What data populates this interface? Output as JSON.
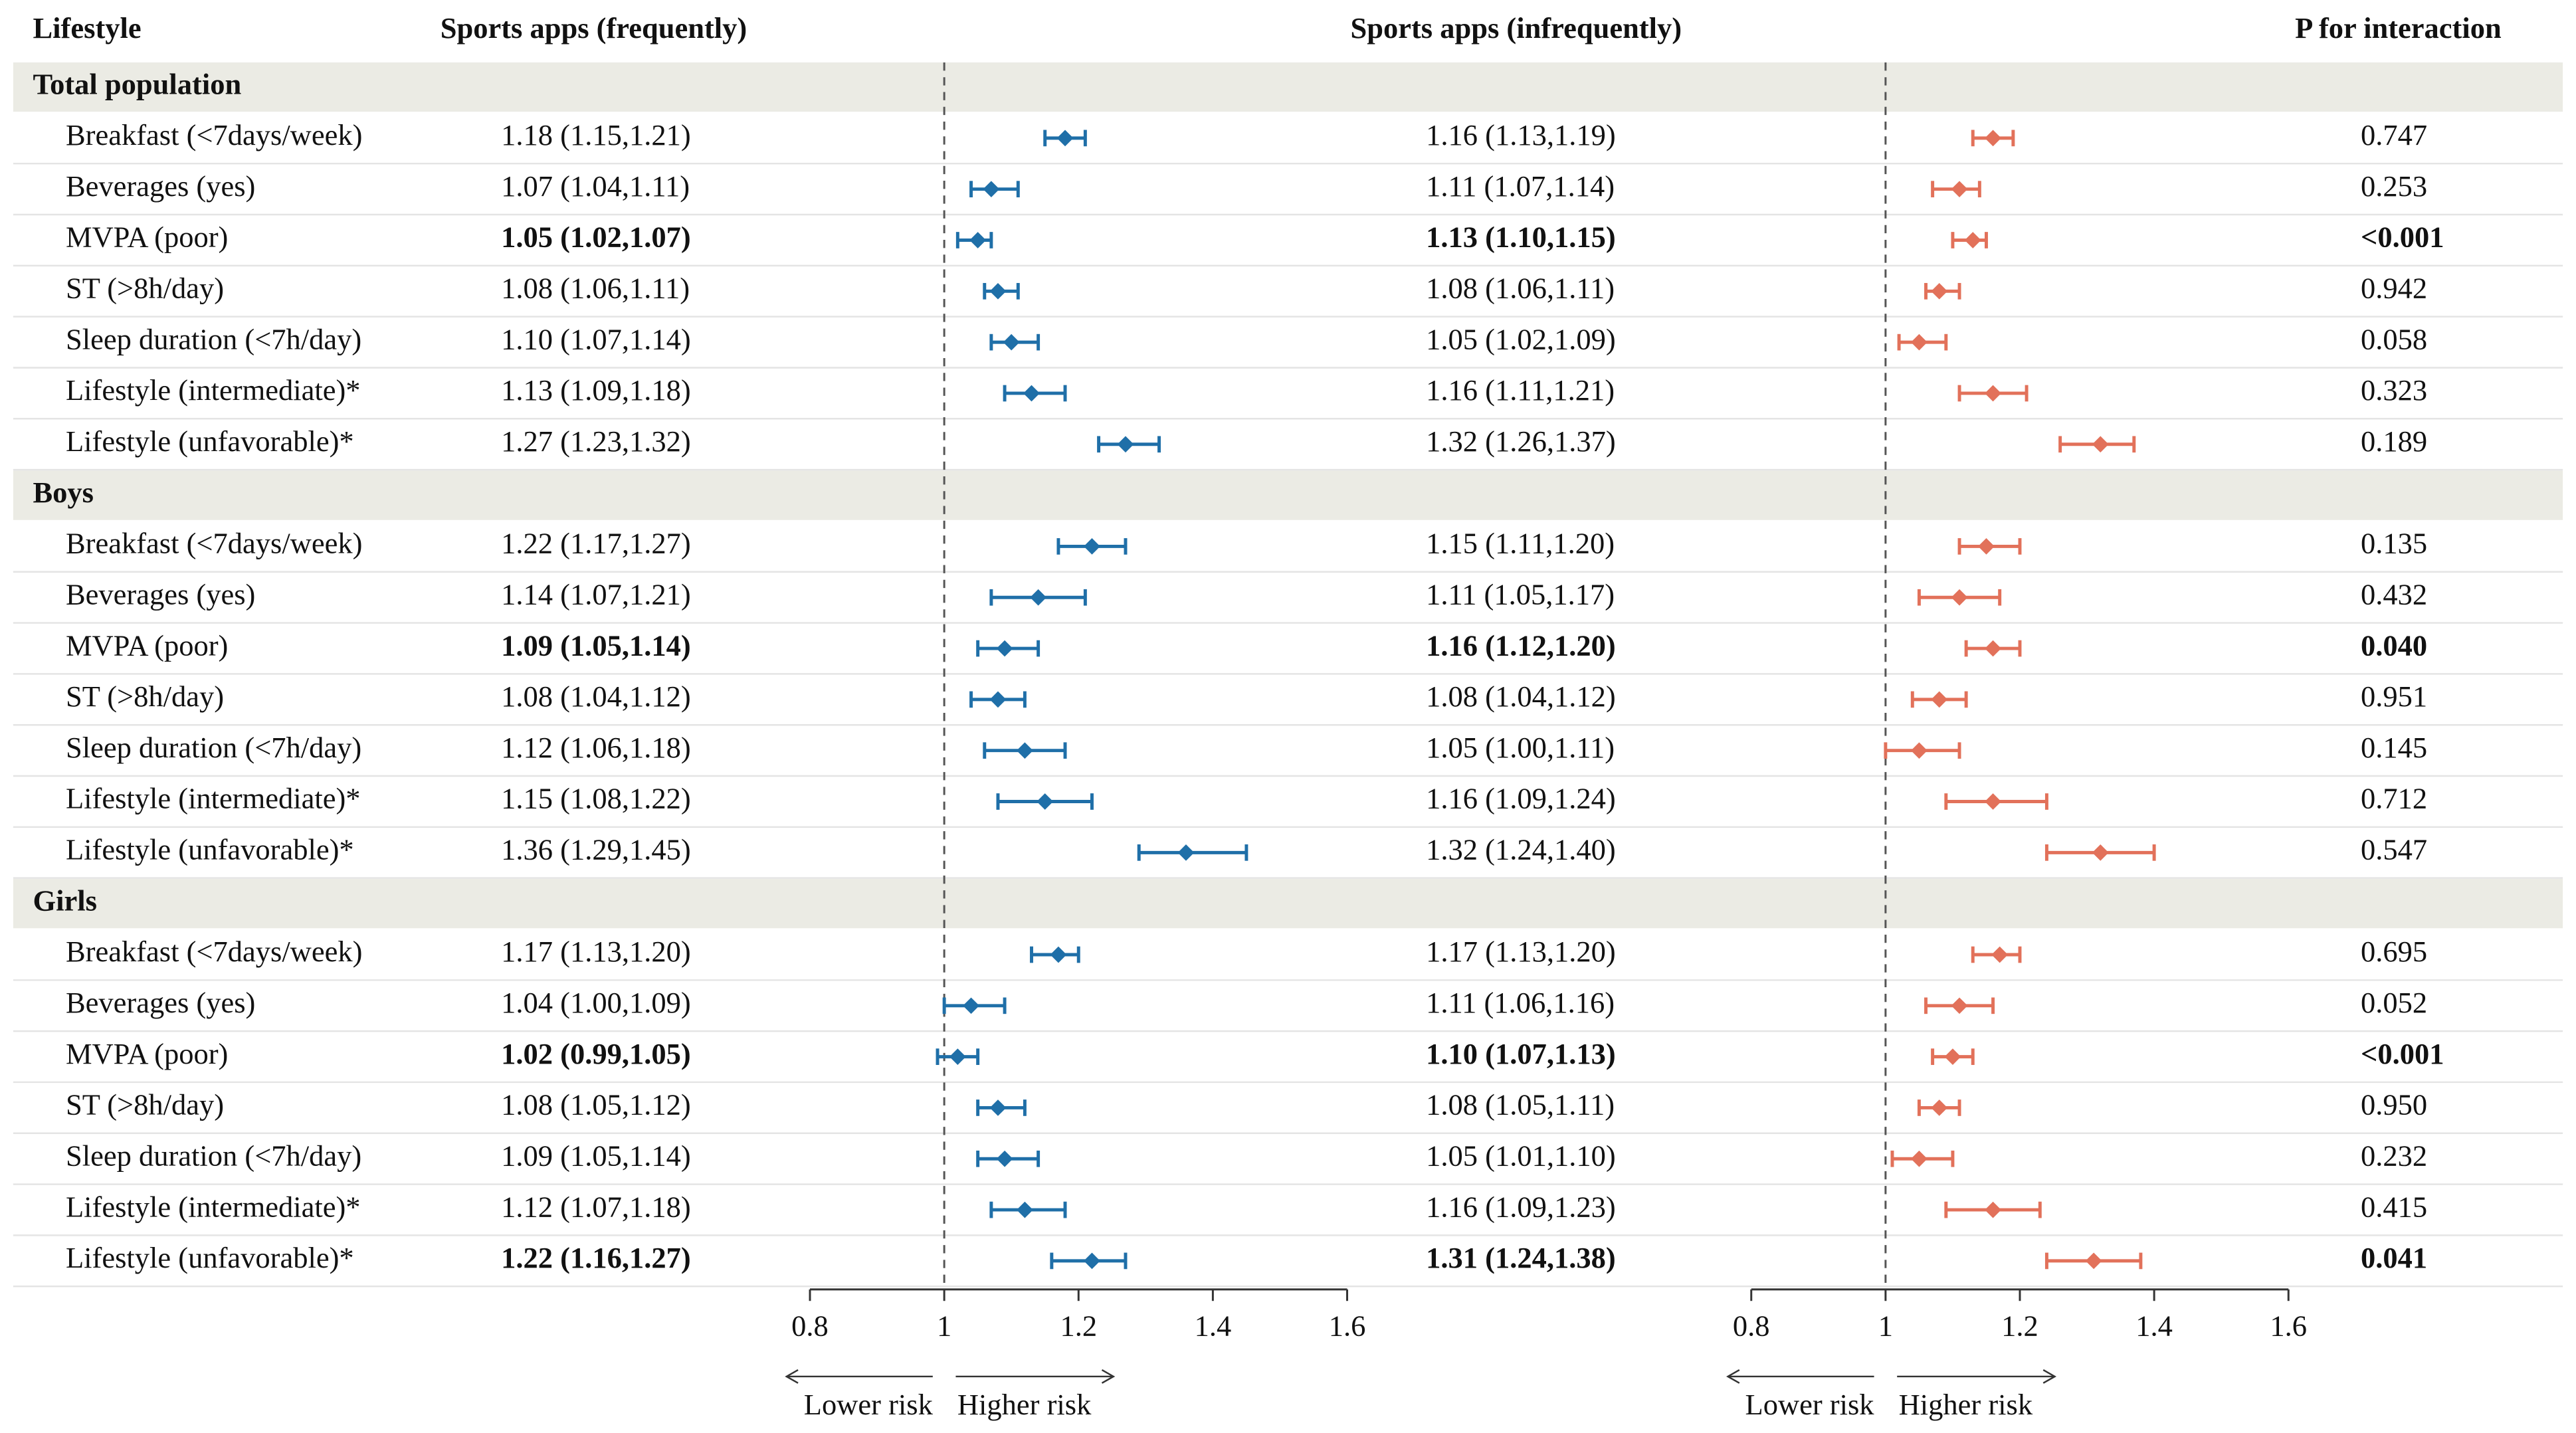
{
  "chart_data": {
    "type": "forest",
    "label_header": "Lifestyle",
    "p_header": "P for interaction",
    "series": [
      {
        "name": "Sports apps (frequently)",
        "color": "#1f6fa8"
      },
      {
        "name": "Sports apps (infrequently)",
        "color": "#e2715a"
      }
    ],
    "xlim": [
      0.8,
      1.6
    ],
    "xticks": [
      0.8,
      1,
      1.2,
      1.4,
      1.6
    ],
    "ref": 1,
    "lower_label": "Lower risk",
    "higher_label": "Higher risk",
    "groups": [
      {
        "name": "Total population",
        "rows": [
          {
            "label": "Breakfast (<7days/week)",
            "estimates": [
              {
                "text": "1.18 (1.15,1.21)",
                "est": 1.18,
                "lo": 1.15,
                "hi": 1.21
              },
              {
                "text": "1.16 (1.13,1.19)",
                "est": 1.16,
                "lo": 1.13,
                "hi": 1.19
              }
            ],
            "p": "0.747"
          },
          {
            "label": "Beverages (yes)",
            "estimates": [
              {
                "text": "1.07 (1.04,1.11)",
                "est": 1.07,
                "lo": 1.04,
                "hi": 1.11
              },
              {
                "text": "1.11 (1.07,1.14)",
                "est": 1.11,
                "lo": 1.07,
                "hi": 1.14
              }
            ],
            "p": "0.253"
          },
          {
            "label": "MVPA (poor)",
            "bold": true,
            "estimates": [
              {
                "text": "1.05 (1.02,1.07)",
                "est": 1.05,
                "lo": 1.02,
                "hi": 1.07
              },
              {
                "text": "1.13 (1.10,1.15)",
                "est": 1.13,
                "lo": 1.1,
                "hi": 1.15
              }
            ],
            "p": "<0.001"
          },
          {
            "label": "ST (>8h/day)",
            "estimates": [
              {
                "text": "1.08 (1.06,1.11)",
                "est": 1.08,
                "lo": 1.06,
                "hi": 1.11
              },
              {
                "text": "1.08 (1.06,1.11)",
                "est": 1.08,
                "lo": 1.06,
                "hi": 1.11
              }
            ],
            "p": "0.942"
          },
          {
            "label": "Sleep duration (<7h/day)",
            "estimates": [
              {
                "text": "1.10 (1.07,1.14)",
                "est": 1.1,
                "lo": 1.07,
                "hi": 1.14
              },
              {
                "text": "1.05 (1.02,1.09)",
                "est": 1.05,
                "lo": 1.02,
                "hi": 1.09
              }
            ],
            "p": "0.058"
          },
          {
            "label": "Lifestyle (intermediate)*",
            "estimates": [
              {
                "text": "1.13 (1.09,1.18)",
                "est": 1.13,
                "lo": 1.09,
                "hi": 1.18
              },
              {
                "text": "1.16 (1.11,1.21)",
                "est": 1.16,
                "lo": 1.11,
                "hi": 1.21
              }
            ],
            "p": "0.323"
          },
          {
            "label": "Lifestyle (unfavorable)*",
            "estimates": [
              {
                "text": "1.27 (1.23,1.32)",
                "est": 1.27,
                "lo": 1.23,
                "hi": 1.32
              },
              {
                "text": "1.32 (1.26,1.37)",
                "est": 1.32,
                "lo": 1.26,
                "hi": 1.37
              }
            ],
            "p": "0.189"
          }
        ]
      },
      {
        "name": "Boys",
        "rows": [
          {
            "label": "Breakfast (<7days/week)",
            "estimates": [
              {
                "text": "1.22 (1.17,1.27)",
                "est": 1.22,
                "lo": 1.17,
                "hi": 1.27
              },
              {
                "text": "1.15 (1.11,1.20)",
                "est": 1.15,
                "lo": 1.11,
                "hi": 1.2
              }
            ],
            "p": "0.135"
          },
          {
            "label": "Beverages (yes)",
            "estimates": [
              {
                "text": "1.14 (1.07,1.21)",
                "est": 1.14,
                "lo": 1.07,
                "hi": 1.21
              },
              {
                "text": "1.11 (1.05,1.17)",
                "est": 1.11,
                "lo": 1.05,
                "hi": 1.17
              }
            ],
            "p": "0.432"
          },
          {
            "label": "MVPA (poor)",
            "bold": true,
            "estimates": [
              {
                "text": "1.09 (1.05,1.14)",
                "est": 1.09,
                "lo": 1.05,
                "hi": 1.14
              },
              {
                "text": "1.16 (1.12,1.20)",
                "est": 1.16,
                "lo": 1.12,
                "hi": 1.2
              }
            ],
            "p": "0.040"
          },
          {
            "label": "ST (>8h/day)",
            "estimates": [
              {
                "text": "1.08 (1.04,1.12)",
                "est": 1.08,
                "lo": 1.04,
                "hi": 1.12
              },
              {
                "text": "1.08 (1.04,1.12)",
                "est": 1.08,
                "lo": 1.04,
                "hi": 1.12
              }
            ],
            "p": "0.951"
          },
          {
            "label": "Sleep duration (<7h/day)",
            "estimates": [
              {
                "text": "1.12 (1.06,1.18)",
                "est": 1.12,
                "lo": 1.06,
                "hi": 1.18
              },
              {
                "text": "1.05 (1.00,1.11)",
                "est": 1.05,
                "lo": 1.0,
                "hi": 1.11
              }
            ],
            "p": "0.145"
          },
          {
            "label": "Lifestyle (intermediate)*",
            "estimates": [
              {
                "text": "1.15 (1.08,1.22)",
                "est": 1.15,
                "lo": 1.08,
                "hi": 1.22
              },
              {
                "text": "1.16 (1.09,1.24)",
                "est": 1.16,
                "lo": 1.09,
                "hi": 1.24
              }
            ],
            "p": "0.712"
          },
          {
            "label": "Lifestyle (unfavorable)*",
            "estimates": [
              {
                "text": "1.36 (1.29,1.45)",
                "est": 1.36,
                "lo": 1.29,
                "hi": 1.45
              },
              {
                "text": "1.32 (1.24,1.40)",
                "est": 1.32,
                "lo": 1.24,
                "hi": 1.4
              }
            ],
            "p": "0.547"
          }
        ]
      },
      {
        "name": "Girls",
        "rows": [
          {
            "label": "Breakfast (<7days/week)",
            "estimates": [
              {
                "text": "1.17 (1.13,1.20)",
                "est": 1.17,
                "lo": 1.13,
                "hi": 1.2
              },
              {
                "text": "1.17 (1.13,1.20)",
                "est": 1.17,
                "lo": 1.13,
                "hi": 1.2
              }
            ],
            "p": "0.695"
          },
          {
            "label": "Beverages (yes)",
            "estimates": [
              {
                "text": "1.04 (1.00,1.09)",
                "est": 1.04,
                "lo": 1.0,
                "hi": 1.09
              },
              {
                "text": "1.11 (1.06,1.16)",
                "est": 1.11,
                "lo": 1.06,
                "hi": 1.16
              }
            ],
            "p": "0.052"
          },
          {
            "label": "MVPA (poor)",
            "bold": true,
            "estimates": [
              {
                "text": "1.02 (0.99,1.05)",
                "est": 1.02,
                "lo": 0.99,
                "hi": 1.05
              },
              {
                "text": "1.10 (1.07,1.13)",
                "est": 1.1,
                "lo": 1.07,
                "hi": 1.13
              }
            ],
            "p": "<0.001"
          },
          {
            "label": "ST (>8h/day)",
            "estimates": [
              {
                "text": "1.08 (1.05,1.12)",
                "est": 1.08,
                "lo": 1.05,
                "hi": 1.12
              },
              {
                "text": "1.08 (1.05,1.11)",
                "est": 1.08,
                "lo": 1.05,
                "hi": 1.11
              }
            ],
            "p": "0.950"
          },
          {
            "label": "Sleep duration (<7h/day)",
            "estimates": [
              {
                "text": "1.09 (1.05,1.14)",
                "est": 1.09,
                "lo": 1.05,
                "hi": 1.14
              },
              {
                "text": "1.05 (1.01,1.10)",
                "est": 1.05,
                "lo": 1.01,
                "hi": 1.1
              }
            ],
            "p": "0.232"
          },
          {
            "label": "Lifestyle (intermediate)*",
            "estimates": [
              {
                "text": "1.12 (1.07,1.18)",
                "est": 1.12,
                "lo": 1.07,
                "hi": 1.18
              },
              {
                "text": "1.16 (1.09,1.23)",
                "est": 1.16,
                "lo": 1.09,
                "hi": 1.23
              }
            ],
            "p": "0.415"
          },
          {
            "label": "Lifestyle (unfavorable)*",
            "bold": true,
            "estimates": [
              {
                "text": "1.22 (1.16,1.27)",
                "est": 1.22,
                "lo": 1.16,
                "hi": 1.27
              },
              {
                "text": "1.31 (1.24,1.38)",
                "est": 1.31,
                "lo": 1.24,
                "hi": 1.38
              }
            ],
            "p": "0.041"
          }
        ]
      }
    ]
  }
}
